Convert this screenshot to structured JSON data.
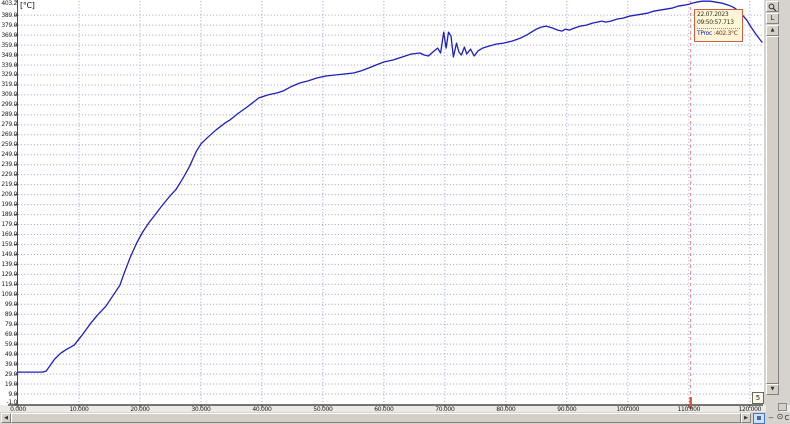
{
  "window": {
    "background": "#d6d3ce",
    "plot_background": "#ffffff"
  },
  "chart_data": {
    "type": "line",
    "title": "",
    "unit_label": "[°C]",
    "xlabel": "",
    "ylabel": "[°C]",
    "x_range": [
      0,
      122
    ],
    "y_range": [
      -1.0,
      403.2
    ],
    "grid": "dotted",
    "grid_color": "#9aa3cc",
    "axis_color": "#4a4a4a",
    "legend_position": "none",
    "x_ticks": [
      {
        "t": 0,
        "label": "0.000",
        "grid": false
      },
      {
        "t": 10,
        "label": "10.000",
        "grid": true
      },
      {
        "t": 20,
        "label": "20.000",
        "grid": true
      },
      {
        "t": 30,
        "label": "30.000",
        "grid": true
      },
      {
        "t": 40,
        "label": "40.000",
        "grid": true
      },
      {
        "t": 50,
        "label": "50.000",
        "grid": true
      },
      {
        "t": 60,
        "label": "60.000",
        "grid": true
      },
      {
        "t": 70,
        "label": "70.000",
        "grid": true
      },
      {
        "t": 80,
        "label": "80.000",
        "grid": true
      },
      {
        "t": 90,
        "label": "90.000",
        "grid": true
      },
      {
        "t": 100,
        "label": "100.000",
        "grid": true
      },
      {
        "t": 110,
        "label": "110.000",
        "grid": true
      },
      {
        "t": 120,
        "label": "120.000",
        "grid": true
      }
    ],
    "y_ticks": [
      {
        "v": 403.2,
        "label": "403.2",
        "grid": false
      },
      {
        "v": 389,
        "label": "389.0",
        "grid": true
      },
      {
        "v": 379,
        "label": "379.0",
        "grid": true
      },
      {
        "v": 369,
        "label": "369.0",
        "grid": true
      },
      {
        "v": 359,
        "label": "359.0",
        "grid": true
      },
      {
        "v": 349,
        "label": "349.0",
        "grid": true
      },
      {
        "v": 339,
        "label": "339.0",
        "grid": true
      },
      {
        "v": 329,
        "label": "329.0",
        "grid": true
      },
      {
        "v": 319,
        "label": "319.0",
        "grid": true
      },
      {
        "v": 309,
        "label": "309.0",
        "grid": true
      },
      {
        "v": 299,
        "label": "299.0",
        "grid": true
      },
      {
        "v": 289,
        "label": "289.0",
        "grid": true
      },
      {
        "v": 279,
        "label": "279.0",
        "grid": true
      },
      {
        "v": 269,
        "label": "269.0",
        "grid": true
      },
      {
        "v": 259,
        "label": "259.0",
        "grid": true
      },
      {
        "v": 249,
        "label": "249.0",
        "grid": true
      },
      {
        "v": 239,
        "label": "239.0",
        "grid": true
      },
      {
        "v": 229,
        "label": "229.0",
        "grid": true
      },
      {
        "v": 219,
        "label": "219.0",
        "grid": true
      },
      {
        "v": 209,
        "label": "209.0",
        "grid": true
      },
      {
        "v": 199,
        "label": "199.0",
        "grid": true
      },
      {
        "v": 189,
        "label": "189.0",
        "grid": true
      },
      {
        "v": 179,
        "label": "179.0",
        "grid": true
      },
      {
        "v": 169,
        "label": "169.0",
        "grid": true
      },
      {
        "v": 159,
        "label": "159.0",
        "grid": true
      },
      {
        "v": 149,
        "label": "149.0",
        "grid": true
      },
      {
        "v": 139,
        "label": "139.0",
        "grid": true
      },
      {
        "v": 129,
        "label": "129.0",
        "grid": true
      },
      {
        "v": 119,
        "label": "119.0",
        "grid": true
      },
      {
        "v": 109,
        "label": "109.0",
        "grid": true
      },
      {
        "v": 99,
        "label": "99.0",
        "grid": true
      },
      {
        "v": 89,
        "label": "89.0",
        "grid": true
      },
      {
        "v": 79,
        "label": "79.0",
        "grid": true
      },
      {
        "v": 69,
        "label": "69.0",
        "grid": true
      },
      {
        "v": 59,
        "label": "59.0",
        "grid": true
      },
      {
        "v": 49,
        "label": "49.0",
        "grid": true
      },
      {
        "v": 39,
        "label": "39.0",
        "grid": true
      },
      {
        "v": 29,
        "label": "29.0",
        "grid": true
      },
      {
        "v": 19,
        "label": "19.0",
        "grid": true
      },
      {
        "v": 9,
        "label": "9.0",
        "grid": true
      },
      {
        "v": -1,
        "label": "-1.0",
        "grid": false
      }
    ],
    "series": [
      {
        "name": "TProc",
        "color": "#1f1fbe",
        "points": [
          [
            0,
            31
          ],
          [
            2,
            31
          ],
          [
            4,
            31
          ],
          [
            4.6,
            32
          ],
          [
            5.2,
            37
          ],
          [
            6,
            44
          ],
          [
            7,
            50
          ],
          [
            8,
            54
          ],
          [
            9.2,
            58
          ],
          [
            10.5,
            68
          ],
          [
            11.8,
            79
          ],
          [
            13,
            88
          ],
          [
            14.4,
            97
          ],
          [
            15.5,
            107
          ],
          [
            16.7,
            118
          ],
          [
            17.4,
            130
          ],
          [
            18.4,
            146
          ],
          [
            19.5,
            161
          ],
          [
            20.5,
            172
          ],
          [
            21.5,
            181
          ],
          [
            22.5,
            189
          ],
          [
            23.5,
            197
          ],
          [
            24.7,
            206
          ],
          [
            25.9,
            214
          ],
          [
            27,
            225
          ],
          [
            28.1,
            237
          ],
          [
            29.2,
            252
          ],
          [
            30,
            260
          ],
          [
            31.2,
            267
          ],
          [
            32.5,
            274
          ],
          [
            34,
            281
          ],
          [
            34.8,
            284
          ],
          [
            36,
            290
          ],
          [
            37.6,
            297
          ],
          [
            39.5,
            306
          ],
          [
            41,
            309
          ],
          [
            42.5,
            311
          ],
          [
            43.5,
            313
          ],
          [
            44.7,
            317
          ],
          [
            46.2,
            321
          ],
          [
            47.5,
            323
          ],
          [
            49,
            326
          ],
          [
            50.5,
            328
          ],
          [
            52,
            329
          ],
          [
            53.5,
            330
          ],
          [
            55,
            331
          ],
          [
            56.2,
            333
          ],
          [
            57.5,
            336
          ],
          [
            58.7,
            339
          ],
          [
            60,
            342
          ],
          [
            61.5,
            344
          ],
          [
            63,
            347
          ],
          [
            64.5,
            350
          ],
          [
            65.9,
            351
          ],
          [
            66.6,
            349
          ],
          [
            67.3,
            348
          ],
          [
            68.2,
            353
          ],
          [
            68.8,
            356
          ],
          [
            69.3,
            351
          ],
          [
            69.8,
            372
          ],
          [
            70.2,
            356
          ],
          [
            70.6,
            372
          ],
          [
            71,
            368
          ],
          [
            71.4,
            347
          ],
          [
            71.9,
            361
          ],
          [
            72.3,
            352
          ],
          [
            72.7,
            349
          ],
          [
            73.2,
            357
          ],
          [
            73.6,
            350
          ],
          [
            74.2,
            355
          ],
          [
            74.8,
            348
          ],
          [
            75.4,
            353
          ],
          [
            76.2,
            356
          ],
          [
            77.2,
            358
          ],
          [
            78.4,
            360
          ],
          [
            79.6,
            361
          ],
          [
            81,
            363
          ],
          [
            82.4,
            366
          ],
          [
            83.4,
            369
          ],
          [
            84.2,
            372
          ],
          [
            85,
            375
          ],
          [
            85.8,
            377
          ],
          [
            86.6,
            378
          ],
          [
            87.7,
            376
          ],
          [
            88.5,
            374
          ],
          [
            89.2,
            373
          ],
          [
            89.8,
            375
          ],
          [
            90.4,
            374
          ],
          [
            91.2,
            376
          ],
          [
            92.2,
            378
          ],
          [
            93.2,
            379
          ],
          [
            94.2,
            381
          ],
          [
            95,
            382
          ],
          [
            95.7,
            383
          ],
          [
            96.4,
            382
          ],
          [
            97.2,
            383
          ],
          [
            98.2,
            385
          ],
          [
            99.2,
            386
          ],
          [
            100.2,
            388
          ],
          [
            101.2,
            389
          ],
          [
            102.2,
            390
          ],
          [
            103.2,
            391
          ],
          [
            104.2,
            393
          ],
          [
            105.2,
            394
          ],
          [
            106.2,
            395
          ],
          [
            107.2,
            396
          ],
          [
            108.2,
            398
          ],
          [
            109.2,
            399
          ],
          [
            110,
            400
          ],
          [
            110.5,
            401
          ],
          [
            111.2,
            402
          ],
          [
            112.2,
            403
          ],
          [
            113.5,
            403
          ],
          [
            114.5,
            402
          ],
          [
            115.5,
            401
          ],
          [
            116.5,
            399
          ],
          [
            117.3,
            397
          ],
          [
            118,
            394
          ],
          [
            118.8,
            389
          ],
          [
            119.5,
            384
          ],
          [
            120.2,
            377
          ],
          [
            121,
            370
          ],
          [
            121.6,
            365
          ],
          [
            122,
            362
          ]
        ]
      }
    ],
    "marker": {
      "t": 110.3,
      "line_color": "#e88585",
      "axis_tick_color": "#e0502e"
    }
  },
  "tooltip": {
    "date": "22.07.2023",
    "time": "09:50:57.713",
    "channel": "TProc",
    "value": " :402.3°C"
  },
  "page_tag": "5",
  "scrollbar": {
    "up_glyph": "▲",
    "down_glyph": "▼",
    "left_glyph": "◀",
    "right_glyph": "▶",
    "axis_button_glyph": "L"
  },
  "corner_buttons": {
    "minus_glyph": "−",
    "target_glyph": "⊙",
    "letter_c_glyph": "C"
  }
}
